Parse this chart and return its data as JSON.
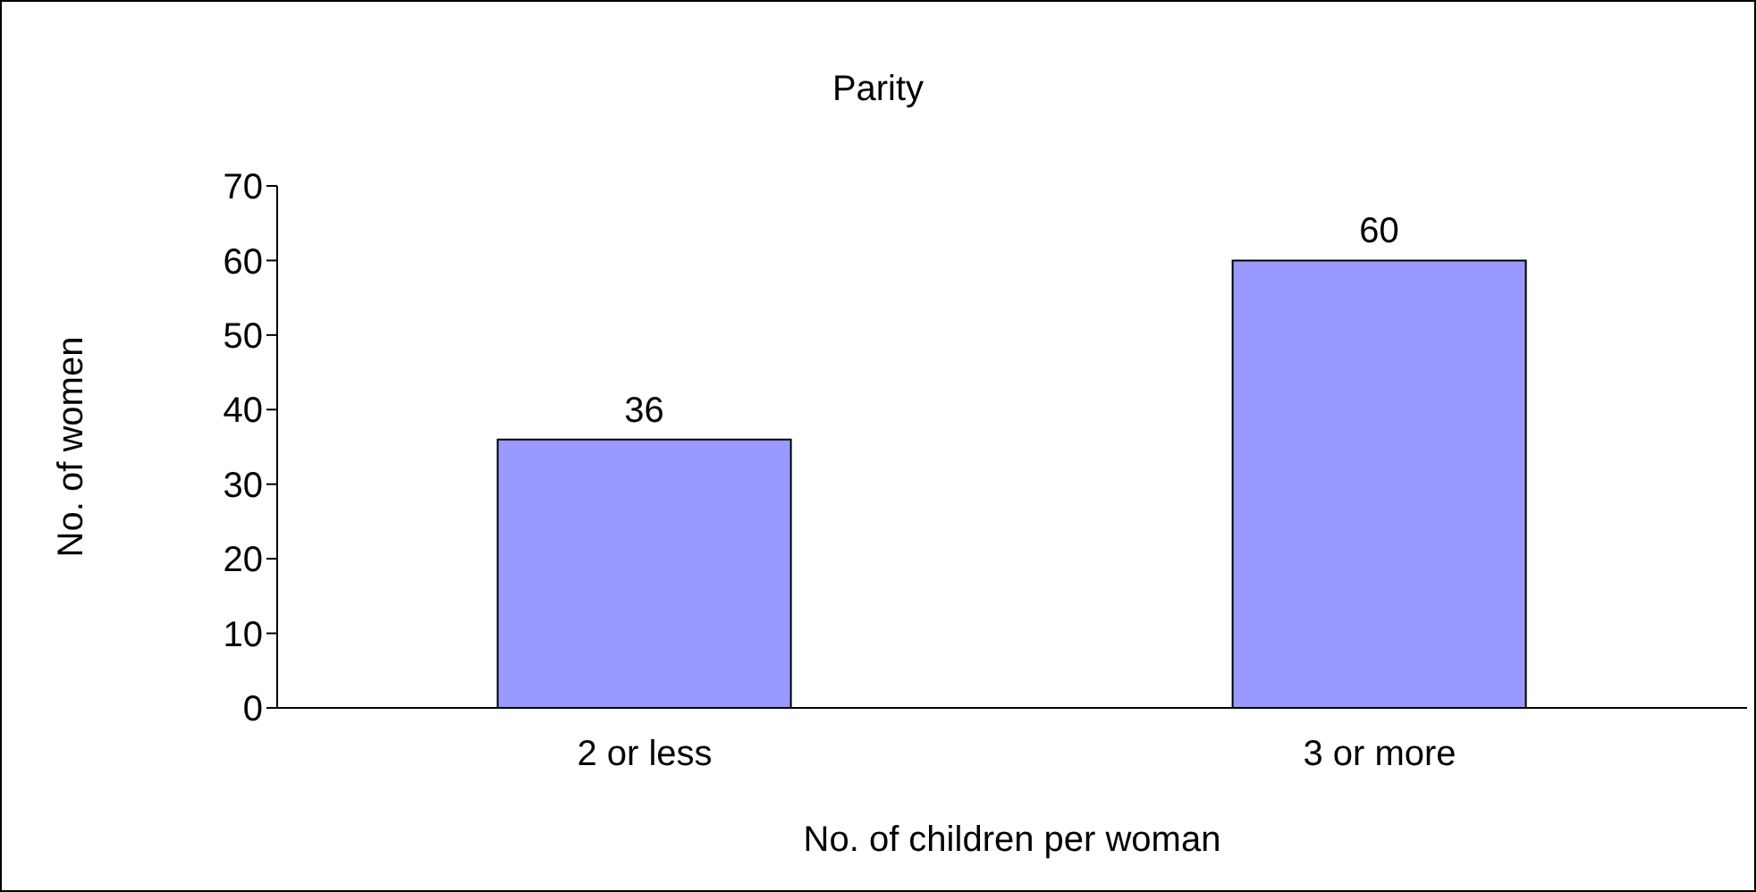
{
  "chart_data": {
    "type": "bar",
    "title": "Parity",
    "xlabel": "No. of children per woman",
    "ylabel": "No. of women",
    "categories": [
      "2 or less",
      "3 or more"
    ],
    "values": [
      36,
      60
    ],
    "color": "#9999ff",
    "ylim": [
      0,
      70
    ],
    "yticks": [
      0,
      10,
      20,
      30,
      40,
      50,
      60,
      70
    ],
    "grid": false,
    "data_labels": true
  }
}
